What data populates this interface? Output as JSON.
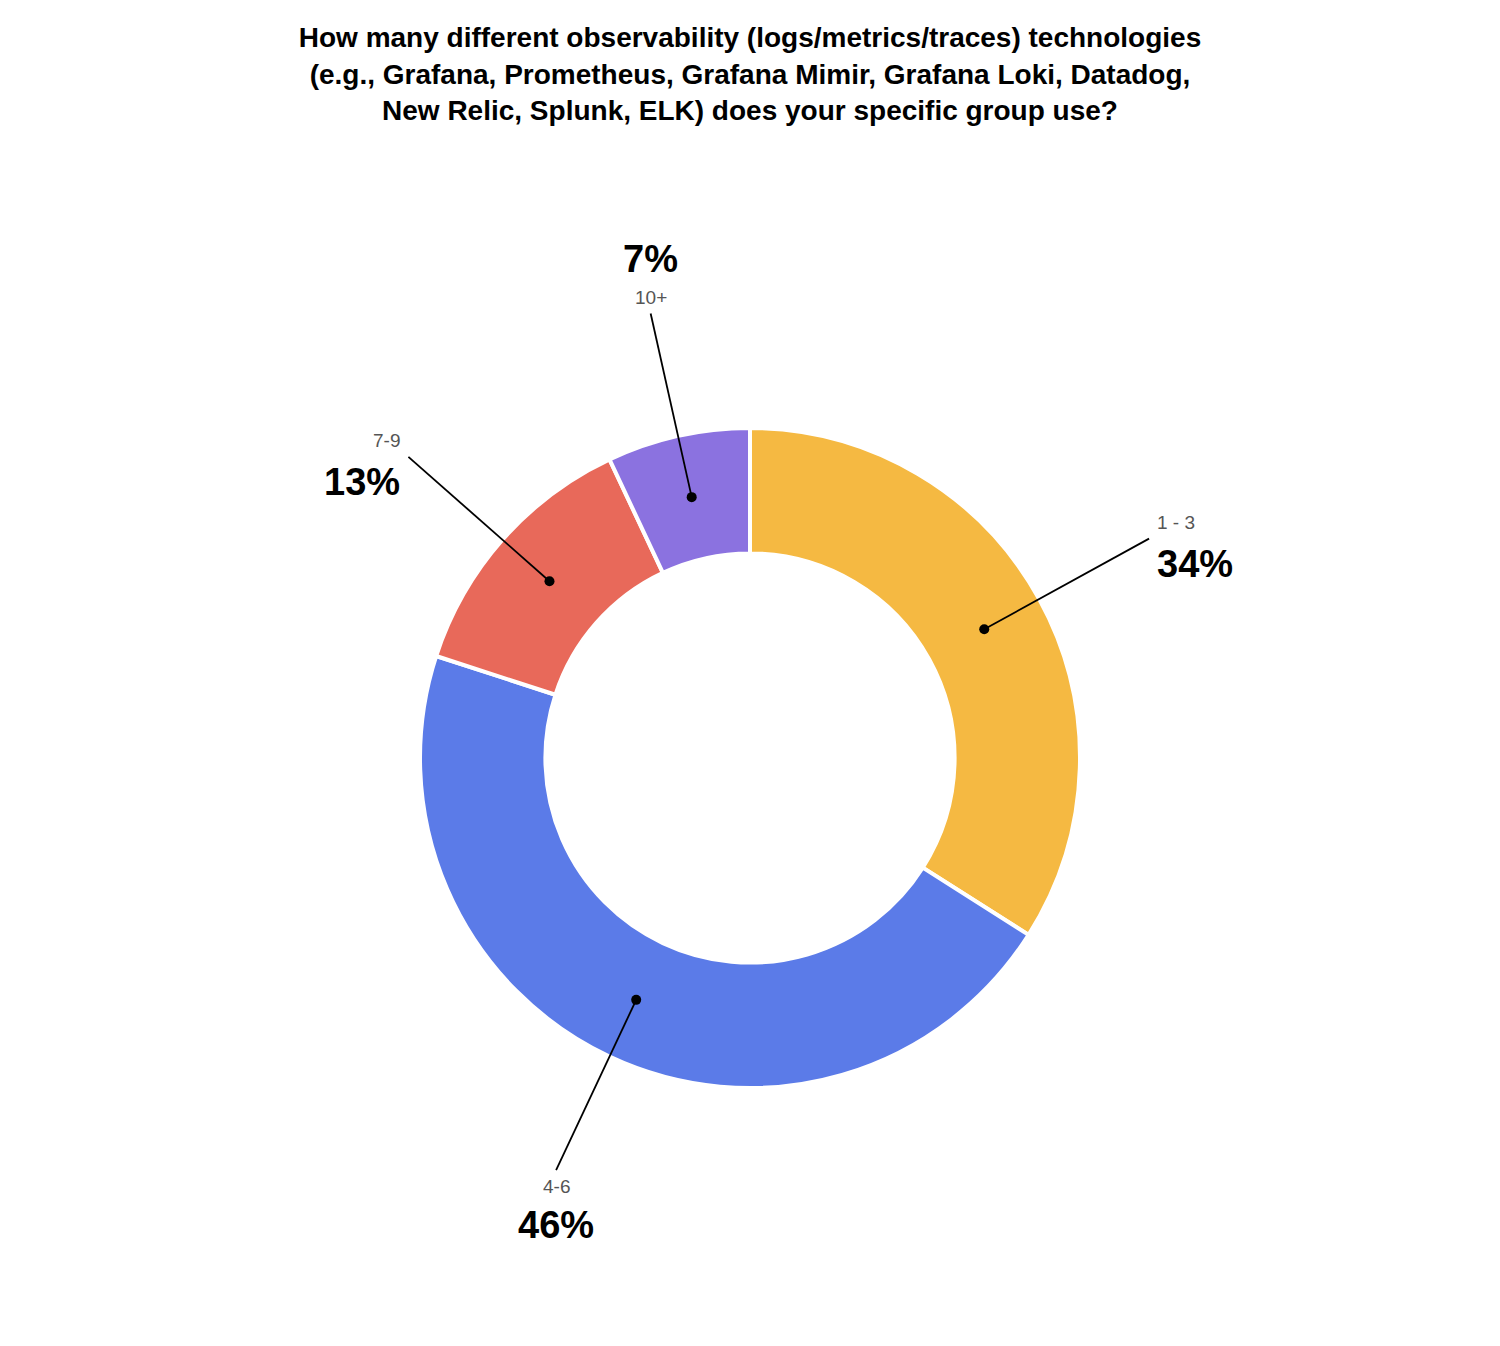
{
  "chart_data": {
    "type": "pie",
    "title": "How many different observability (logs/metrics/traces) technologies\n(e.g., Grafana, Prometheus, Grafana Mimir, Grafana Loki, Datadog,\nNew Relic, Splunk, ELK) does your specific group use?",
    "categories": [
      "1 - 3",
      "4-6",
      "7-9",
      "10+"
    ],
    "values": [
      34,
      46,
      13,
      7
    ],
    "value_labels": [
      "34%",
      "46%",
      "13%",
      "7%"
    ],
    "colors": [
      "#F5B942",
      "#5B7BE8",
      "#E8695A",
      "#8B72E0"
    ],
    "data_labels": true
  }
}
